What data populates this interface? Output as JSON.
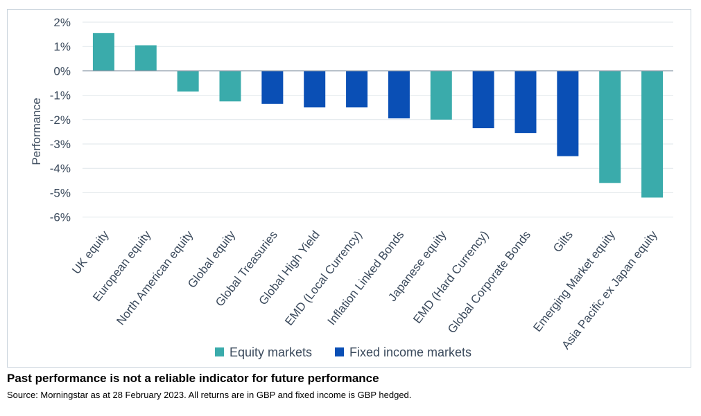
{
  "chart_data": {
    "type": "bar",
    "ylabel": "Performance",
    "ylim": [
      -6,
      2
    ],
    "yticks": [
      2,
      1,
      0,
      -1,
      -2,
      -3,
      -4,
      -5,
      -6
    ],
    "ytick_labels": [
      "2%",
      "1%",
      "0%",
      "-1%",
      "-2%",
      "-3%",
      "-4%",
      "-5%",
      "-6%"
    ],
    "grid": true,
    "legend_position": "bottom",
    "categories": [
      "UK equity",
      "European equity",
      "North American equity",
      "Global equity",
      "Global Treasuries",
      "Global High Yield",
      "EMD (Local Currency)",
      "Inflation Linked Bonds",
      "Japanese equity",
      "EMD (Hard Currency)",
      "Global Corporate Bonds",
      "Gilts",
      "Emerging Market equity",
      "Asia Pacific ex Japan equity"
    ],
    "values": [
      1.55,
      1.05,
      -0.85,
      -1.25,
      -1.35,
      -1.5,
      -1.5,
      -1.95,
      -2.0,
      -2.35,
      -2.55,
      -3.5,
      -4.6,
      -5.2
    ],
    "groups": [
      "equity",
      "equity",
      "equity",
      "equity",
      "fixed",
      "fixed",
      "fixed",
      "fixed",
      "equity",
      "fixed",
      "fixed",
      "fixed",
      "equity",
      "equity"
    ],
    "series": [
      {
        "name": "Equity markets",
        "key": "equity",
        "color": "#3aabab"
      },
      {
        "name": "Fixed income markets",
        "key": "fixed",
        "color": "#0a4fb5"
      }
    ]
  },
  "footer": {
    "disclaimer": "Past performance is not a reliable indicator for future performance",
    "source": "Source: Morningstar as at 28 February 2023. All returns are in GBP and fixed income is GBP hedged."
  }
}
